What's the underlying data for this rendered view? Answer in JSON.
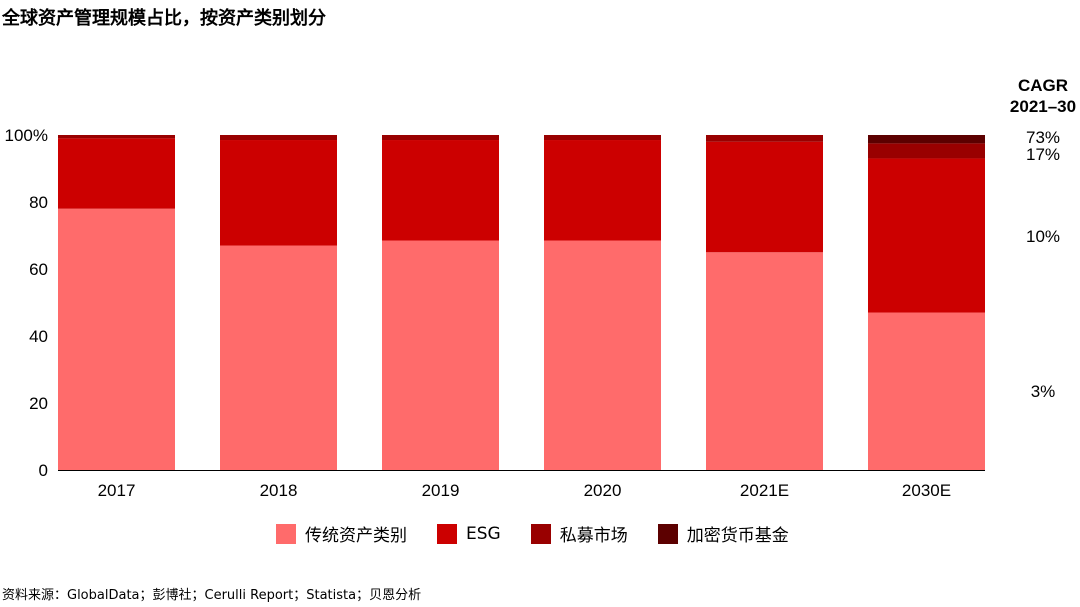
{
  "chart_data": {
    "type": "bar",
    "stacked": true,
    "title": "全球资产管理规模占比，按资产类别划分",
    "categories": [
      "2017",
      "2018",
      "2019",
      "2020",
      "2021E",
      "2030E"
    ],
    "series": [
      {
        "name": "传统资产类别",
        "color": "#ff6b6b",
        "values": [
          78,
          67,
          68.5,
          68.5,
          65,
          47
        ]
      },
      {
        "name": "ESG",
        "color": "#cc0000",
        "values": [
          21,
          31.5,
          30,
          30,
          33,
          46
        ]
      },
      {
        "name": "私募市场",
        "color": "#990000",
        "values": [
          1,
          1.5,
          1.5,
          1.5,
          2,
          4.5
        ]
      },
      {
        "name": "加密货币基金",
        "color": "#5c0000",
        "values": [
          0,
          0,
          0,
          0,
          0,
          2.5
        ]
      }
    ],
    "ylim": [
      0,
      100
    ],
    "yticks": [
      "0",
      "20",
      "40",
      "60",
      "80",
      "100%"
    ],
    "grid": false,
    "legend_position": "bottom",
    "cagr": {
      "header_line1": "CAGR",
      "header_line2": "2021–30",
      "labels": [
        "3%",
        "10%",
        "17%",
        "73%"
      ]
    }
  },
  "source": "资料来源：GlobalData；彭博社；Cerulli Report；Statista；贝恩分析"
}
